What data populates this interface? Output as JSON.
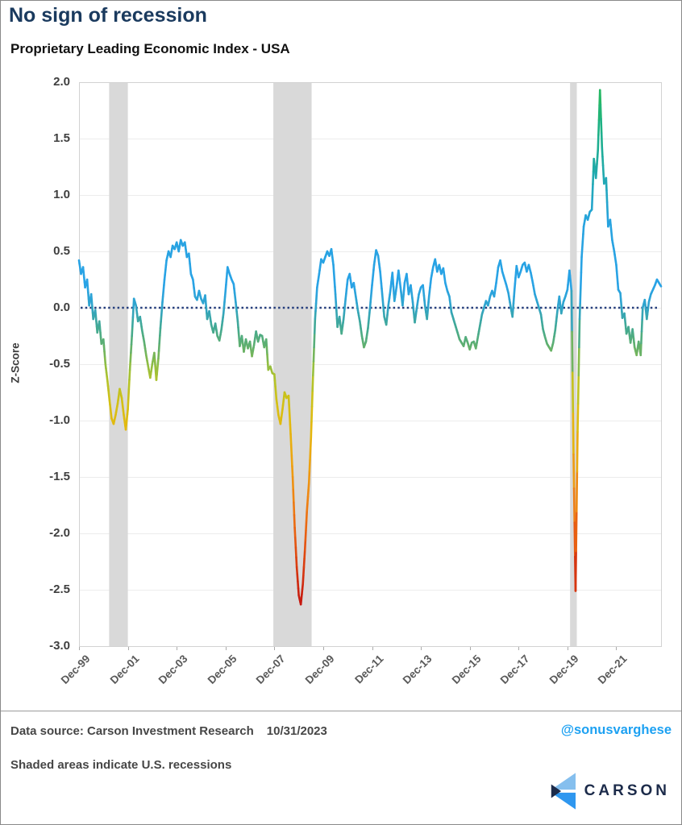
{
  "page": {
    "title": "No sign of recession",
    "subtitle": "Proprietary Leading Economic Index - USA",
    "footer": {
      "data_source": "Data source: Carson Investment Research",
      "as_of_date": "10/31/2023",
      "handle": "@sonusvarghese",
      "note": "Shaded areas indicate U.S. recessions",
      "logo_text": "CARSON"
    },
    "colors": {
      "title": "#1a3a5e",
      "handle": "#1da1f2",
      "logo_navy": "#1c2b4a",
      "logo_light_blue": "#85bfee",
      "logo_blue": "#2f97ef"
    }
  },
  "chart_data": {
    "type": "line",
    "title": "Proprietary Leading Economic Index - USA",
    "ylabel": "Z-Score",
    "ylim": [
      -3.0,
      2.0
    ],
    "y_tick_labels": [
      "2.0",
      "1.5",
      "1.0",
      "0.5",
      "0.0",
      "-0.5",
      "-1.0",
      "-1.5",
      "-2.0",
      "-2.5",
      "-3.0"
    ],
    "y_tick_values": [
      2.0,
      1.5,
      1.0,
      0.5,
      0.0,
      -0.5,
      -1.0,
      -1.5,
      -2.0,
      -2.5,
      -3.0
    ],
    "x_tick_labels": [
      "Dec-99",
      "Dec-01",
      "Dec-03",
      "Dec-05",
      "Dec-07",
      "Dec-09",
      "Dec-11",
      "Dec-13",
      "Dec-15",
      "Dec-17",
      "Dec-19",
      "Dec-21"
    ],
    "x_tick_months": [
      0,
      24,
      48,
      72,
      96,
      120,
      144,
      168,
      192,
      216,
      240,
      264
    ],
    "frequency": "monthly",
    "start_label": "Dec-99",
    "grid": true,
    "legend": "none",
    "values_monthly": [
      0.42,
      0.3,
      0.36,
      0.18,
      0.25,
      0.02,
      0.12,
      -0.1,
      -0.02,
      -0.22,
      -0.12,
      -0.32,
      -0.28,
      -0.5,
      -0.65,
      -0.82,
      -0.98,
      -1.03,
      -0.95,
      -0.85,
      -0.72,
      -0.8,
      -0.95,
      -1.08,
      -0.9,
      -0.55,
      -0.25,
      0.08,
      0.02,
      -0.12,
      -0.08,
      -0.2,
      -0.3,
      -0.42,
      -0.52,
      -0.62,
      -0.5,
      -0.4,
      -0.64,
      -0.45,
      -0.18,
      0.05,
      0.25,
      0.42,
      0.5,
      0.45,
      0.55,
      0.52,
      0.58,
      0.5,
      0.6,
      0.55,
      0.58,
      0.45,
      0.48,
      0.3,
      0.25,
      0.1,
      0.07,
      0.15,
      0.08,
      0.04,
      0.11,
      -0.1,
      -0.03,
      -0.15,
      -0.22,
      -0.14,
      -0.25,
      -0.29,
      -0.19,
      -0.05,
      0.15,
      0.36,
      0.3,
      0.25,
      0.21,
      0.05,
      -0.12,
      -0.34,
      -0.25,
      -0.39,
      -0.28,
      -0.36,
      -0.3,
      -0.43,
      -0.33,
      -0.21,
      -0.3,
      -0.24,
      -0.25,
      -0.35,
      -0.28,
      -0.55,
      -0.52,
      -0.58,
      -0.59,
      -0.81,
      -0.95,
      -1.03,
      -0.9,
      -0.75,
      -0.8,
      -0.78,
      -1.12,
      -1.5,
      -1.95,
      -2.3,
      -2.55,
      -2.63,
      -2.45,
      -2.15,
      -1.8,
      -1.55,
      -1.15,
      -0.6,
      -0.1,
      0.18,
      0.3,
      0.43,
      0.4,
      0.45,
      0.5,
      0.46,
      0.52,
      0.38,
      0.12,
      -0.17,
      -0.08,
      -0.23,
      -0.1,
      0.08,
      0.25,
      0.3,
      0.18,
      0.22,
      0.1,
      -0.02,
      -0.12,
      -0.25,
      -0.35,
      -0.3,
      -0.18,
      0.0,
      0.2,
      0.38,
      0.51,
      0.46,
      0.32,
      0.12,
      -0.08,
      -0.15,
      0.02,
      0.15,
      0.31,
      0.06,
      0.18,
      0.33,
      0.18,
      0.02,
      0.22,
      0.3,
      0.12,
      0.2,
      0.05,
      -0.13,
      0.0,
      0.12,
      0.18,
      0.2,
      0.02,
      -0.1,
      0.1,
      0.26,
      0.36,
      0.43,
      0.32,
      0.38,
      0.3,
      0.35,
      0.22,
      0.15,
      0.1,
      -0.04,
      -0.1,
      -0.16,
      -0.22,
      -0.28,
      -0.31,
      -0.34,
      -0.26,
      -0.31,
      -0.37,
      -0.31,
      -0.3,
      -0.36,
      -0.26,
      -0.16,
      -0.06,
      0.0,
      0.06,
      0.02,
      0.1,
      0.15,
      0.1,
      0.22,
      0.36,
      0.42,
      0.32,
      0.26,
      0.2,
      0.13,
      0.02,
      -0.08,
      0.16,
      0.37,
      0.27,
      0.32,
      0.38,
      0.4,
      0.32,
      0.38,
      0.31,
      0.22,
      0.12,
      0.06,
      0.0,
      -0.06,
      -0.19,
      -0.26,
      -0.32,
      -0.35,
      -0.38,
      -0.31,
      -0.2,
      -0.04,
      0.1,
      -0.05,
      0.05,
      0.1,
      0.16,
      0.33,
      0.15,
      -1.3,
      -2.51,
      -1.1,
      -0.1,
      0.45,
      0.72,
      0.82,
      0.78,
      0.85,
      0.87,
      1.32,
      1.15,
      1.4,
      1.93,
      1.42,
      1.1,
      1.15,
      0.72,
      0.78,
      0.6,
      0.5,
      0.38,
      0.16,
      0.13,
      -0.09,
      -0.05,
      -0.23,
      -0.17,
      -0.31,
      -0.19,
      -0.35,
      -0.42,
      -0.3,
      -0.42,
      0.0,
      0.07,
      -0.1,
      0.05,
      0.12,
      0.16,
      0.2,
      0.25,
      0.22,
      0.19
    ],
    "recession_bands_months": [
      [
        14.8,
        24.0
      ],
      [
        95.5,
        114.3
      ],
      [
        241.3,
        244.6
      ]
    ],
    "zero_line": {
      "value": 0,
      "style": "dotted",
      "color": "#263f7d"
    },
    "color_stops": [
      [
        -2.65,
        "#c3140f"
      ],
      [
        -2.35,
        "#d5330f"
      ],
      [
        -2.05,
        "#e75a11"
      ],
      [
        -1.7,
        "#ef8312"
      ],
      [
        -1.35,
        "#eda511"
      ],
      [
        -1.05,
        "#e3b90e"
      ],
      [
        -0.85,
        "#d4c013"
      ],
      [
        -0.65,
        "#b3c329"
      ],
      [
        -0.5,
        "#8ebd45"
      ],
      [
        -0.35,
        "#63b06b"
      ],
      [
        -0.2,
        "#46aa8e"
      ],
      [
        -0.08,
        "#38a6ad"
      ],
      [
        0.02,
        "#2fa4cd"
      ],
      [
        0.2,
        "#29a3e6"
      ],
      [
        0.75,
        "#27a3e0"
      ],
      [
        1.0,
        "#23a7c2"
      ],
      [
        1.3,
        "#1faba0"
      ],
      [
        1.6,
        "#1db184"
      ],
      [
        1.95,
        "#2aba5d"
      ]
    ],
    "colors": {
      "band": "#d9d9d9",
      "grid": "#ececec",
      "plot_border": "#d2d2d2",
      "y_text": "#3f3f3f",
      "x_text": "#595959"
    }
  }
}
